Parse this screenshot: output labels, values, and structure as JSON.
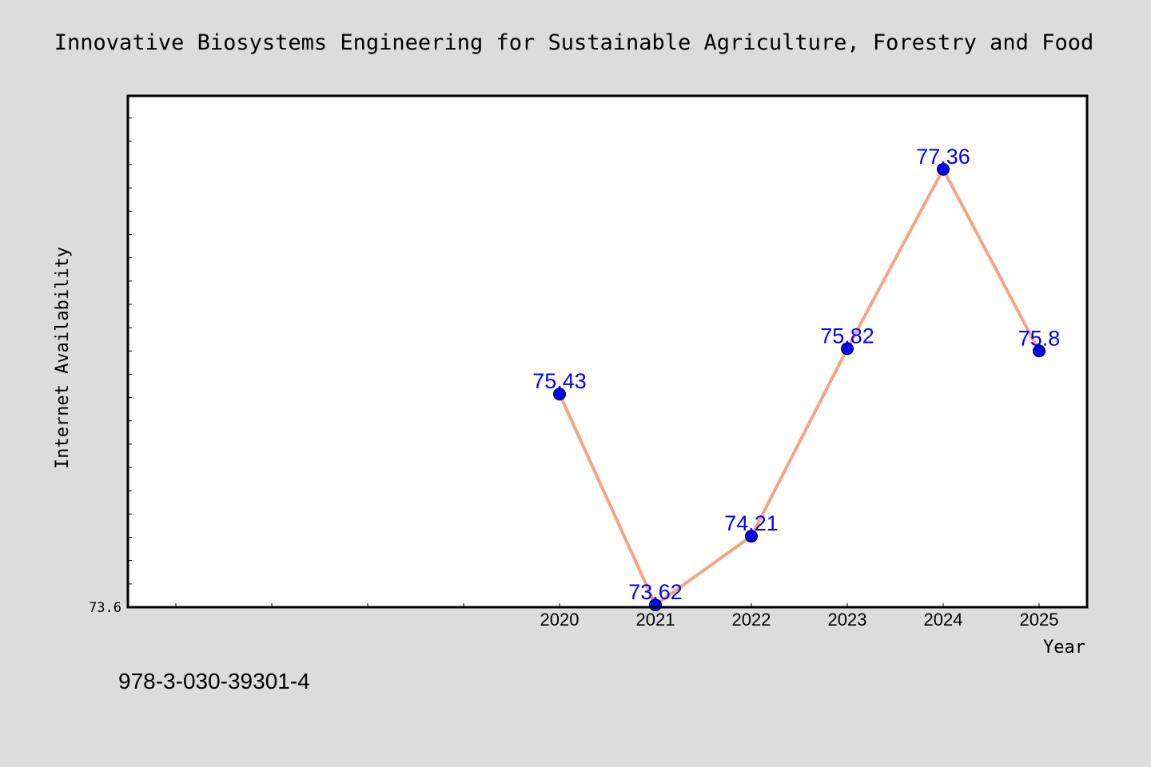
{
  "chart_data": {
    "type": "line",
    "title": "Innovative Biosystems Engineering for Sustainable Agriculture, Forestry and Food",
    "xlabel": "Year",
    "ylabel": "Internet Availability",
    "x": [
      "2020",
      "2021",
      "2022",
      "2023",
      "2024",
      "2025"
    ],
    "series": [
      {
        "values": [
          75.43,
          73.62,
          74.21,
          75.82,
          77.36,
          75.8
        ],
        "labels": [
          "75.43",
          "73.62",
          "74.21",
          "75.82",
          "77.36",
          "75.8"
        ]
      }
    ],
    "ytick_labels": [
      "73.6"
    ],
    "ylim": [
      73.6,
      77.99
    ],
    "grid": false,
    "legend": "none",
    "colors": {
      "line": "#f4a582",
      "marker": "#0000ff",
      "label": "#0000ff",
      "background": "#dcdcdc",
      "plot_background": "#ffffff"
    }
  },
  "footer": {
    "isbn": "978-3-030-39301-4"
  }
}
